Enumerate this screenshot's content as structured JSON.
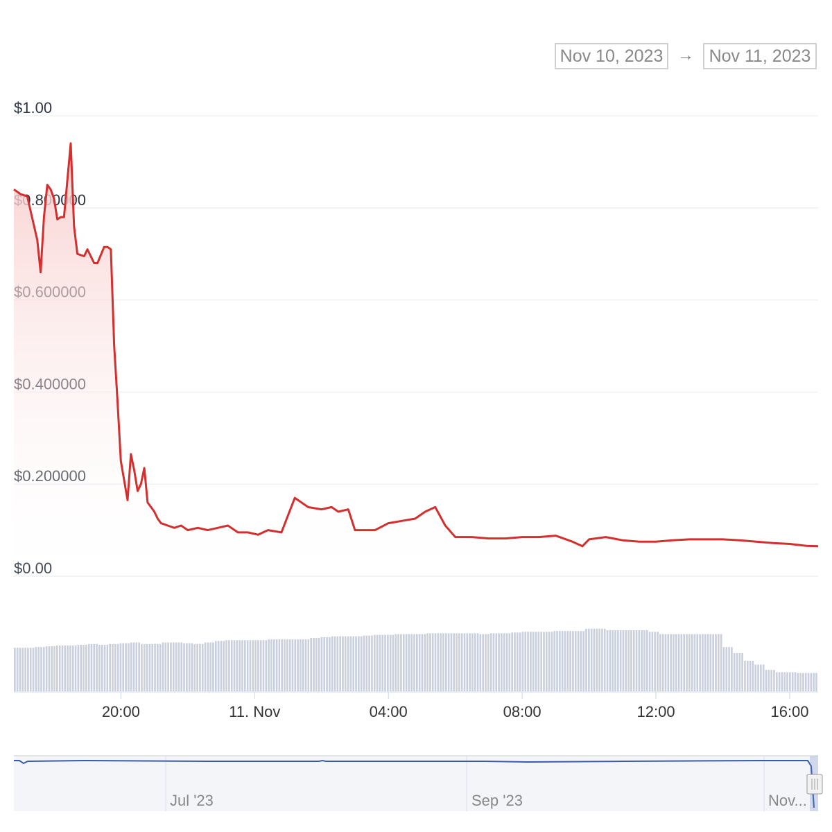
{
  "range_selector": {
    "from": "Nov 10, 2023",
    "arrow": "→",
    "to": "Nov 11, 2023"
  },
  "colors": {
    "price_line": "#d32f2f",
    "area_top": "#f8c9c9",
    "volume_bar": "#c9cfdc",
    "navigator_line": "#3a5ba9",
    "grid": "#e8e8ee"
  },
  "chart_data": {
    "type": "line",
    "y_axis": {
      "ticks": [
        "$0.00",
        "$0.200000",
        "$0.400000",
        "$0.600000",
        "$0.800000",
        "$1.00"
      ],
      "values": [
        0,
        0.2,
        0.4,
        0.6,
        0.8,
        1.0
      ],
      "ylim": [
        0,
        1.0
      ]
    },
    "x_axis": {
      "ticks": [
        "20:00",
        "11. Nov",
        "04:00",
        "08:00",
        "12:00",
        "16:00"
      ],
      "tick_hours": [
        20,
        24,
        28,
        32,
        36,
        40
      ],
      "xlim_hours": [
        16.8,
        40.85
      ]
    },
    "series": [
      {
        "values_x_hours": [
          16.8,
          17.0,
          17.2,
          17.5,
          17.6,
          17.7,
          17.8,
          17.9,
          18.0,
          18.1,
          18.2,
          18.3,
          18.5,
          18.6,
          18.7,
          18.9,
          19.0,
          19.2,
          19.3,
          19.5,
          19.6,
          19.7,
          19.8,
          19.9,
          20.0,
          20.2,
          20.3,
          20.4,
          20.5,
          20.6,
          20.7,
          20.8,
          20.9,
          21.0,
          21.1,
          21.2,
          21.4,
          21.6,
          21.8,
          22.0,
          22.3,
          22.6,
          22.9,
          23.2,
          23.5,
          23.8,
          24.1,
          24.4,
          24.8,
          25.2,
          25.6,
          26.0,
          26.3,
          26.5,
          26.8,
          27.0,
          27.3,
          27.6,
          28.0,
          28.4,
          28.8,
          29.1,
          29.4,
          29.7,
          30.0,
          30.5,
          31.0,
          31.5,
          32.0,
          32.5,
          33.0,
          33.5,
          33.8,
          34.0,
          34.5,
          35.0,
          35.5,
          36.0,
          36.5,
          37.0,
          37.5,
          38.0,
          38.5,
          39.0,
          39.5,
          40.0,
          40.5,
          40.85
        ],
        "values_y": [
          0.84,
          0.83,
          0.825,
          0.73,
          0.66,
          0.78,
          0.85,
          0.84,
          0.82,
          0.775,
          0.78,
          0.78,
          0.94,
          0.76,
          0.7,
          0.695,
          0.71,
          0.68,
          0.68,
          0.715,
          0.715,
          0.71,
          0.5,
          0.38,
          0.25,
          0.165,
          0.265,
          0.23,
          0.185,
          0.2,
          0.235,
          0.16,
          0.15,
          0.14,
          0.125,
          0.115,
          0.11,
          0.105,
          0.11,
          0.1,
          0.105,
          0.1,
          0.105,
          0.11,
          0.095,
          0.095,
          0.09,
          0.1,
          0.095,
          0.17,
          0.15,
          0.145,
          0.15,
          0.14,
          0.145,
          0.1,
          0.1,
          0.1,
          0.115,
          0.12,
          0.125,
          0.14,
          0.15,
          0.11,
          0.085,
          0.085,
          0.082,
          0.082,
          0.085,
          0.085,
          0.088,
          0.075,
          0.065,
          0.08,
          0.085,
          0.078,
          0.075,
          0.075,
          0.078,
          0.08,
          0.08,
          0.08,
          0.078,
          0.075,
          0.072,
          0.07,
          0.066,
          0.065
        ]
      }
    ],
    "volume": {
      "relative_heights": [
        0.57,
        0.57,
        0.58,
        0.59,
        0.6,
        0.6,
        0.61,
        0.62,
        0.61,
        0.62,
        0.63,
        0.64,
        0.62,
        0.62,
        0.64,
        0.64,
        0.63,
        0.62,
        0.64,
        0.66,
        0.67,
        0.67,
        0.67,
        0.67,
        0.68,
        0.68,
        0.68,
        0.68,
        0.7,
        0.71,
        0.72,
        0.72,
        0.72,
        0.73,
        0.74,
        0.74,
        0.75,
        0.75,
        0.75,
        0.76,
        0.76,
        0.76,
        0.76,
        0.76,
        0.75,
        0.76,
        0.76,
        0.77,
        0.78,
        0.78,
        0.78,
        0.79,
        0.79,
        0.79,
        0.82,
        0.82,
        0.8,
        0.8,
        0.8,
        0.8,
        0.78,
        0.75,
        0.75,
        0.75,
        0.75,
        0.75,
        0.75,
        0.58,
        0.5,
        0.4,
        0.35,
        0.28,
        0.25,
        0.25,
        0.24,
        0.24
      ]
    }
  },
  "navigator": {
    "labels": [
      "Jul '23",
      "Sep '23",
      "Nov..."
    ]
  }
}
